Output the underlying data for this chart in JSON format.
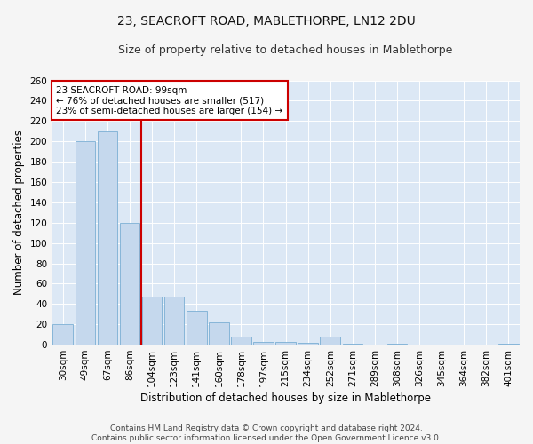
{
  "title": "23, SEACROFT ROAD, MABLETHORPE, LN12 2DU",
  "subtitle": "Size of property relative to detached houses in Mablethorpe",
  "xlabel": "Distribution of detached houses by size in Mablethorpe",
  "ylabel": "Number of detached properties",
  "categories": [
    "30sqm",
    "49sqm",
    "67sqm",
    "86sqm",
    "104sqm",
    "123sqm",
    "141sqm",
    "160sqm",
    "178sqm",
    "197sqm",
    "215sqm",
    "234sqm",
    "252sqm",
    "271sqm",
    "289sqm",
    "308sqm",
    "326sqm",
    "345sqm",
    "364sqm",
    "382sqm",
    "401sqm"
  ],
  "values": [
    20,
    200,
    210,
    120,
    47,
    47,
    33,
    22,
    8,
    3,
    3,
    2,
    8,
    1,
    0,
    1,
    0,
    0,
    0,
    0,
    1
  ],
  "bar_color": "#c5d8ed",
  "bar_edge_color": "#7bafd4",
  "vline_color": "#cc0000",
  "vline_x_index": 3.5,
  "annotation_text": "23 SEACROFT ROAD: 99sqm\n← 76% of detached houses are smaller (517)\n23% of semi-detached houses are larger (154) →",
  "annotation_box_color": "#ffffff",
  "annotation_box_edge": "#cc0000",
  "background_color": "#dce8f5",
  "grid_color": "#ffffff",
  "fig_bg_color": "#f5f5f5",
  "ylim": [
    0,
    260
  ],
  "yticks": [
    0,
    20,
    40,
    60,
    80,
    100,
    120,
    140,
    160,
    180,
    200,
    220,
    240,
    260
  ],
  "title_fontsize": 10,
  "subtitle_fontsize": 9,
  "xlabel_fontsize": 8.5,
  "ylabel_fontsize": 8.5,
  "tick_fontsize": 7.5,
  "annotation_fontsize": 7.5,
  "footer_fontsize": 6.5,
  "footer": "Contains HM Land Registry data © Crown copyright and database right 2024.\nContains public sector information licensed under the Open Government Licence v3.0."
}
